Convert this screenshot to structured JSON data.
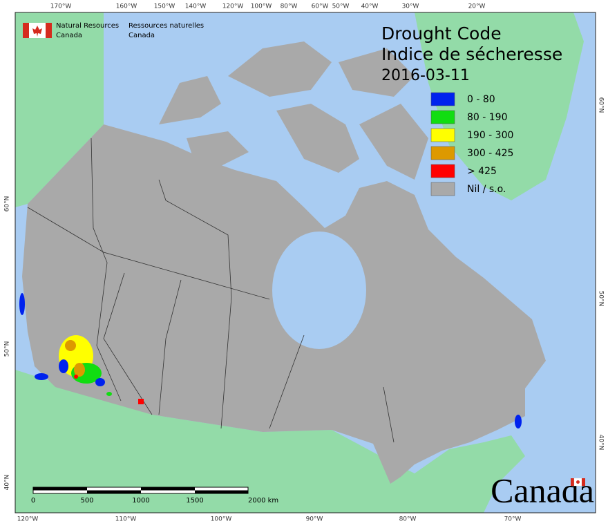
{
  "header": {
    "agency_en": [
      "Natural Resources",
      "Canada"
    ],
    "agency_fr": [
      "Ressources naturelles",
      "Canada"
    ]
  },
  "title": {
    "line1": "Drought Code",
    "line2": "Indice de sécheresse",
    "date": "2016-03-11"
  },
  "legend": [
    {
      "label": "0 - 80",
      "color": "#0022ee"
    },
    {
      "label": "80 - 190",
      "color": "#11dd11"
    },
    {
      "label": "190 - 300",
      "color": "#ffff00"
    },
    {
      "label": "300 - 425",
      "color": "#dd9900"
    },
    {
      "label": "> 425",
      "color": "#ff0000"
    },
    {
      "label": "Nil / s.o.",
      "color": "#a9a9a9"
    }
  ],
  "graticule": {
    "top": [
      "170°W",
      "160°W",
      "150°W",
      "140°W",
      "120°W",
      "100°W",
      "80°W",
      "60°W",
      "50°W",
      "40°W",
      "30°W",
      "20°W"
    ],
    "left": [
      "60°N",
      "50°N",
      "40°N"
    ],
    "right": [
      "60°N",
      "50°N",
      "40°N"
    ],
    "bottom": [
      "120°W",
      "110°W",
      "100°W",
      "90°W",
      "80°W",
      "70°W"
    ]
  },
  "scale_bar": [
    "0",
    "500",
    "1000",
    "1500",
    "2000 km"
  ],
  "wordmark": "Canada"
}
